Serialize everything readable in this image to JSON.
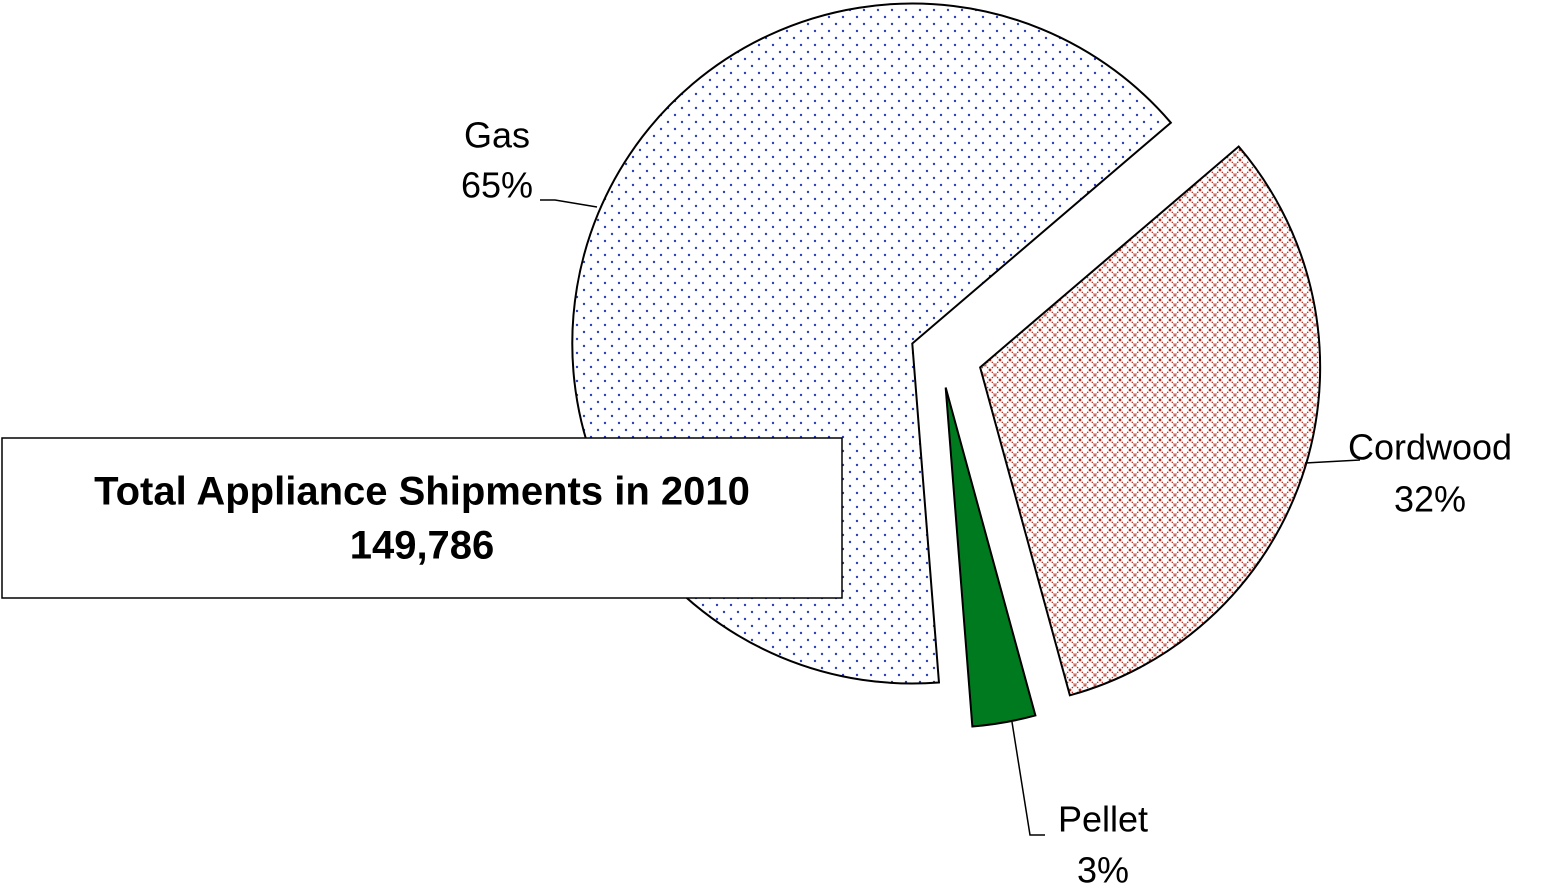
{
  "chart_data": {
    "type": "pie",
    "categories": [
      "Gas",
      "Cordwood",
      "Pellet"
    ],
    "values": [
      65,
      32,
      3
    ],
    "value_labels": [
      "65%",
      "32%",
      "3%"
    ],
    "colors": [
      "#2b3fb8",
      "#b22a1e",
      "#007a1e"
    ],
    "annotations": [
      "Total Appliance Shipments in 2010",
      "149,786"
    ]
  }
}
